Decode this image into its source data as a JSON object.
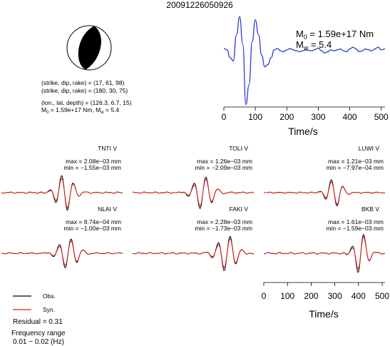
{
  "title": "20091226050926",
  "mechanism": {
    "np1": "(strike, dip, rake) = (17, 61, 98)",
    "np2": "(strike, dip, rake) = (180, 30, 75)",
    "location": "(lon., lat, depth) = (126.3, 6.7, 15)",
    "moment_mag_main": "M",
    "moment_mag_sub0": "0",
    "moment_mag_mid": " = 1.59e+17 Nm, M",
    "moment_mag_subw": "w",
    "moment_mag_end": " = 5.4"
  },
  "stf": {
    "m0_main": "M",
    "m0_sub": "0",
    "m0_value": " = 1.59e+17 Nm",
    "mw_main": "M",
    "mw_sub": "w",
    "mw_value": " = 5.4",
    "xlabel": "Time/s",
    "xticks": [
      "0",
      "100",
      "200",
      "300",
      "400",
      "500"
    ]
  },
  "stations": [
    {
      "name": "TNTI V",
      "max": "max = 2.08e−03 mm",
      "min": "min = −1.55e−03 mm"
    },
    {
      "name": "TOLI V",
      "max": "max = 1.26e−03 mm",
      "min": "min = −2.09e−03 mm"
    },
    {
      "name": "LUWI V",
      "max": "max = 1.21e−03 mm",
      "min": "min = −7.97e−04 mm"
    },
    {
      "name": "NLAI V",
      "max": "max = 8.74e−04 mm",
      "min": "min = −1.00e−03 mm"
    },
    {
      "name": "FAKI V",
      "max": "max = 2.28e−03 mm",
      "min": "min = −1.73e−03 mm"
    },
    {
      "name": "BKB V",
      "max": "max = 1.61e−03 mm",
      "min": "min = −1.59e−03 mm"
    }
  ],
  "bottom_axis": {
    "xlabel": "Time/s",
    "xticks": [
      "0",
      "100",
      "200",
      "300",
      "400",
      "500"
    ]
  },
  "legend": {
    "obs": "Obs.",
    "syn": "Syn.",
    "obs_color": "#000000",
    "syn_color": "#e0201b",
    "residual": "Residual = 0.31",
    "freq_label": "Frequency range",
    "freq_value": "0.01 − 0.02 (Hz)"
  },
  "colors": {
    "stf_line": "#1f2bd6",
    "observed": "#000000",
    "synthetic": "#e0201b",
    "beachball_fill": "#000000"
  },
  "chart_data": [
    {
      "type": "line",
      "name": "source-time-function",
      "xlabel": "Time/s",
      "ylabel": "",
      "xlim": [
        0,
        512
      ],
      "ylim": [
        -1.0,
        1.0
      ],
      "x": [
        0,
        10,
        20,
        30,
        40,
        50,
        60,
        70,
        80,
        90,
        100,
        110,
        120,
        130,
        140,
        150,
        160,
        170,
        180,
        190,
        200,
        210,
        220,
        230,
        240,
        250,
        260,
        270,
        280,
        290,
        300,
        310,
        320,
        330,
        340,
        350,
        360,
        370,
        380,
        390,
        400,
        410,
        420,
        430,
        440,
        450,
        460,
        470,
        480,
        490,
        500,
        512
      ],
      "values": [
        0.25,
        0.22,
        0.05,
        -0.02,
        0.55,
        0.95,
        0.35,
        -0.98,
        -0.55,
        0.4,
        0.88,
        0.55,
        0.1,
        -0.15,
        -0.1,
        0.05,
        0.22,
        0.25,
        0.2,
        0.18,
        0.22,
        0.25,
        0.22,
        0.2,
        0.18,
        0.2,
        0.22,
        0.21,
        0.2,
        0.23,
        0.26,
        0.2,
        0.15,
        0.18,
        0.22,
        0.2,
        0.22,
        0.24,
        0.2,
        0.18,
        0.24,
        0.28,
        0.24,
        0.18,
        0.2,
        0.24,
        0.22,
        0.2,
        0.24,
        0.28,
        0.22,
        0.24
      ]
    },
    {
      "type": "line",
      "name": "waveforms",
      "xlabel": "Time/s",
      "xlim": [
        0,
        512
      ],
      "series": [
        {
          "name": "Obs.",
          "color": "#000000"
        },
        {
          "name": "Syn.",
          "color": "#e0201b"
        }
      ]
    }
  ]
}
